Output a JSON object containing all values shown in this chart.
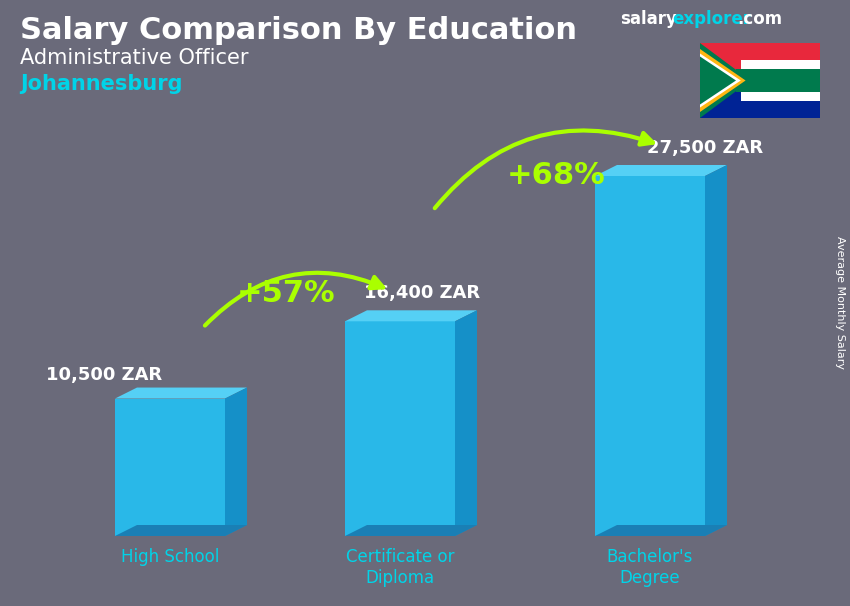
{
  "title": "Salary Comparison By Education",
  "subtitle": "Administrative Officer",
  "city": "Johannesburg",
  "ylabel": "Average Monthly Salary",
  "website_salary": "salary",
  "website_explorer": "explorer",
  "website_com": ".com",
  "categories": [
    "High School",
    "Certificate or\nDiploma",
    "Bachelor's\nDegree"
  ],
  "values": [
    10500,
    16400,
    27500
  ],
  "value_labels": [
    "10,500 ZAR",
    "16,400 ZAR",
    "27,500 ZAR"
  ],
  "bar_color_main": "#29b8e8",
  "bar_color_light": "#55d0f5",
  "bar_color_dark": "#1a7fb5",
  "bar_color_side": "#1590c8",
  "bg_color": "#6a6a7a",
  "title_color": "#ffffff",
  "subtitle_color": "#ffffff",
  "city_color": "#00d4e8",
  "arrow_color": "#aaff00",
  "value_label_color": "#ffffff",
  "x_label_color": "#00d4e8",
  "ylabel_color": "#ffffff",
  "website_salary_color": "#ffffff",
  "website_explorer_color": "#00d4e8",
  "website_com_color": "#ffffff",
  "pct1": "+57%",
  "pct2": "+68%",
  "figsize": [
    8.5,
    6.06
  ],
  "dpi": 100
}
